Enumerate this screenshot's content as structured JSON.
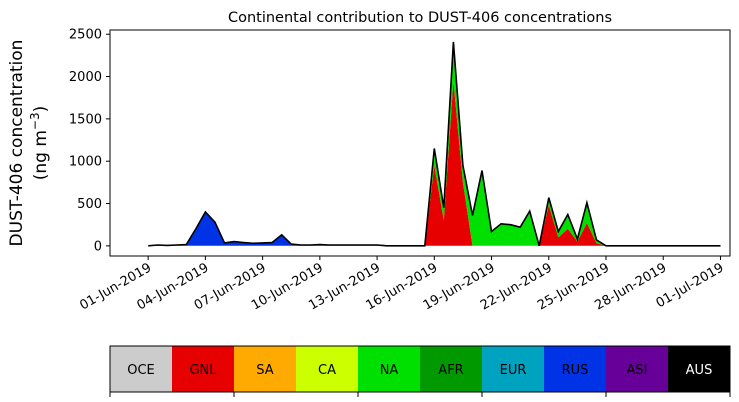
{
  "chart_data": {
    "type": "area",
    "stacked": true,
    "title": "Continental contribution to DUST-406 concentrations",
    "ylabel_line1": "DUST-406 concentration",
    "ylabel_line2": "(ng m",
    "ylabel_unit_exp": "−3",
    "ylabel_close": ")",
    "xlabel": "",
    "ylim": [
      -120,
      2550
    ],
    "yticks": [
      0,
      500,
      1000,
      1500,
      2000,
      2500
    ],
    "ytick_labels": [
      "0",
      "500",
      "1000",
      "1500",
      "2000",
      "2500"
    ],
    "xlim": [
      "2019-05-30",
      "2019-07-01T12:00"
    ],
    "xtick_labels": [
      "01-Jun-2019",
      "04-Jun-2019",
      "07-Jun-2019",
      "10-Jun-2019",
      "13-Jun-2019",
      "16-Jun-2019",
      "19-Jun-2019",
      "22-Jun-2019",
      "25-Jun-2019",
      "28-Jun-2019",
      "01-Jul-2019"
    ],
    "xtick_dates": [
      "2019-06-01",
      "2019-06-04",
      "2019-06-07",
      "2019-06-10",
      "2019-06-13",
      "2019-06-16",
      "2019-06-19",
      "2019-06-22",
      "2019-06-25",
      "2019-06-28",
      "2019-07-01"
    ],
    "x": [
      "2019-06-01T00:00",
      "2019-06-01T12:00",
      "2019-06-02T00:00",
      "2019-06-02T12:00",
      "2019-06-03T00:00",
      "2019-06-03T12:00",
      "2019-06-04T00:00",
      "2019-06-04T12:00",
      "2019-06-05T00:00",
      "2019-06-05T12:00",
      "2019-06-06T00:00",
      "2019-06-06T12:00",
      "2019-06-07T00:00",
      "2019-06-07T12:00",
      "2019-06-08T00:00",
      "2019-06-08T12:00",
      "2019-06-09T00:00",
      "2019-06-09T12:00",
      "2019-06-10T00:00",
      "2019-06-10T12:00",
      "2019-06-11T00:00",
      "2019-06-11T12:00",
      "2019-06-12T00:00",
      "2019-06-12T12:00",
      "2019-06-13T00:00",
      "2019-06-13T12:00",
      "2019-06-14T00:00",
      "2019-06-14T12:00",
      "2019-06-15T00:00",
      "2019-06-15T12:00",
      "2019-06-16T00:00",
      "2019-06-16T12:00",
      "2019-06-17T00:00",
      "2019-06-17T12:00",
      "2019-06-18T00:00",
      "2019-06-18T12:00",
      "2019-06-19T00:00",
      "2019-06-19T12:00",
      "2019-06-20T00:00",
      "2019-06-20T12:00",
      "2019-06-21T00:00",
      "2019-06-21T12:00",
      "2019-06-22T00:00",
      "2019-06-22T12:00",
      "2019-06-23T00:00",
      "2019-06-23T12:00",
      "2019-06-24T00:00",
      "2019-06-24T12:00",
      "2019-06-25T00:00",
      "2019-06-25T12:00",
      "2019-06-26T00:00",
      "2019-06-26T12:00",
      "2019-06-27T00:00",
      "2019-06-27T12:00",
      "2019-06-28T00:00",
      "2019-06-28T12:00",
      "2019-06-29T00:00",
      "2019-06-29T12:00",
      "2019-06-30T00:00",
      "2019-06-30T12:00",
      "2019-07-01T00:00"
    ],
    "series": [
      {
        "name": "GNL",
        "color": "#e60000",
        "values": [
          0,
          0,
          0,
          0,
          0,
          0,
          0,
          0,
          0,
          0,
          0,
          0,
          0,
          0,
          0,
          0,
          0,
          0,
          0,
          0,
          0,
          0,
          0,
          0,
          0,
          0,
          0,
          0,
          0,
          0,
          950,
          300,
          1950,
          750,
          0,
          0,
          0,
          0,
          0,
          0,
          0,
          0,
          480,
          100,
          200,
          50,
          270,
          30,
          0,
          0,
          0,
          0,
          0,
          0,
          0,
          0,
          0,
          0,
          0,
          0,
          0
        ]
      },
      {
        "name": "CA",
        "color": "#ccff00",
        "values": [
          0,
          0,
          0,
          0,
          0,
          0,
          0,
          0,
          0,
          0,
          0,
          0,
          0,
          0,
          0,
          0,
          0,
          0,
          0,
          0,
          0,
          0,
          0,
          0,
          0,
          0,
          0,
          0,
          0,
          0,
          0,
          0,
          0,
          0,
          0,
          0,
          0,
          0,
          0,
          0,
          0,
          0,
          0,
          0,
          0,
          0,
          0,
          0,
          0,
          0,
          0,
          0,
          0,
          0,
          0,
          0,
          0,
          0,
          0,
          0,
          0
        ]
      },
      {
        "name": "NA",
        "color": "#00e000",
        "values": [
          0,
          0,
          0,
          0,
          0,
          0,
          0,
          0,
          0,
          0,
          0,
          0,
          0,
          0,
          0,
          0,
          0,
          0,
          0,
          0,
          0,
          0,
          0,
          0,
          0,
          0,
          0,
          0,
          0,
          0,
          200,
          150,
          460,
          200,
          360,
          890,
          170,
          260,
          250,
          220,
          410,
          0,
          90,
          70,
          170,
          30,
          240,
          40,
          0,
          0,
          0,
          0,
          0,
          0,
          0,
          0,
          0,
          0,
          0,
          0,
          0
        ]
      },
      {
        "name": "AFR",
        "color": "#009900",
        "values": [
          0,
          0,
          0,
          0,
          0,
          0,
          0,
          0,
          0,
          0,
          0,
          0,
          0,
          0,
          0,
          0,
          0,
          0,
          0,
          0,
          0,
          0,
          0,
          0,
          0,
          0,
          0,
          0,
          0,
          0,
          0,
          0,
          0,
          0,
          0,
          0,
          0,
          0,
          0,
          0,
          0,
          0,
          0,
          0,
          0,
          0,
          0,
          0,
          0,
          0,
          0,
          0,
          0,
          0,
          0,
          0,
          0,
          0,
          0,
          0,
          0
        ]
      },
      {
        "name": "EUR",
        "color": "#00a3bf",
        "values": [
          0,
          0,
          0,
          0,
          0,
          0,
          0,
          0,
          0,
          0,
          0,
          0,
          0,
          0,
          0,
          0,
          0,
          0,
          0,
          0,
          0,
          0,
          0,
          0,
          0,
          0,
          0,
          0,
          0,
          0,
          0,
          0,
          0,
          0,
          0,
          0,
          0,
          0,
          0,
          0,
          0,
          0,
          0,
          0,
          0,
          0,
          0,
          0,
          0,
          0,
          0,
          0,
          0,
          0,
          0,
          0,
          0,
          0,
          0,
          0,
          0
        ]
      },
      {
        "name": "RUS",
        "color": "#0033e6",
        "values": [
          0,
          10,
          5,
          10,
          15,
          200,
          400,
          280,
          35,
          50,
          40,
          30,
          35,
          40,
          130,
          20,
          10,
          10,
          15,
          10,
          10,
          10,
          10,
          10,
          10,
          0,
          0,
          0,
          0,
          0,
          0,
          0,
          0,
          0,
          0,
          0,
          0,
          0,
          0,
          0,
          0,
          0,
          0,
          0,
          0,
          0,
          0,
          0,
          0,
          0,
          0,
          0,
          0,
          0,
          0,
          0,
          0,
          0,
          0,
          0,
          0
        ]
      }
    ],
    "legend": [
      {
        "label": "OCE",
        "color": "#cccccc",
        "text_color": "#000000"
      },
      {
        "label": "GNL",
        "color": "#e60000",
        "text_color": "#000000"
      },
      {
        "label": "SA",
        "color": "#ffaa00",
        "text_color": "#000000"
      },
      {
        "label": "CA",
        "color": "#ccff00",
        "text_color": "#000000"
      },
      {
        "label": "NA",
        "color": "#00e000",
        "text_color": "#000000"
      },
      {
        "label": "AFR",
        "color": "#009900",
        "text_color": "#000000"
      },
      {
        "label": "EUR",
        "color": "#00a3bf",
        "text_color": "#000000"
      },
      {
        "label": "RUS",
        "color": "#0033e6",
        "text_color": "#000000"
      },
      {
        "label": "ASI",
        "color": "#660099",
        "text_color": "#000000"
      },
      {
        "label": "AUS",
        "color": "#000000",
        "text_color": "#ffffff"
      }
    ],
    "legend_placement": "bottom",
    "grid": false
  }
}
